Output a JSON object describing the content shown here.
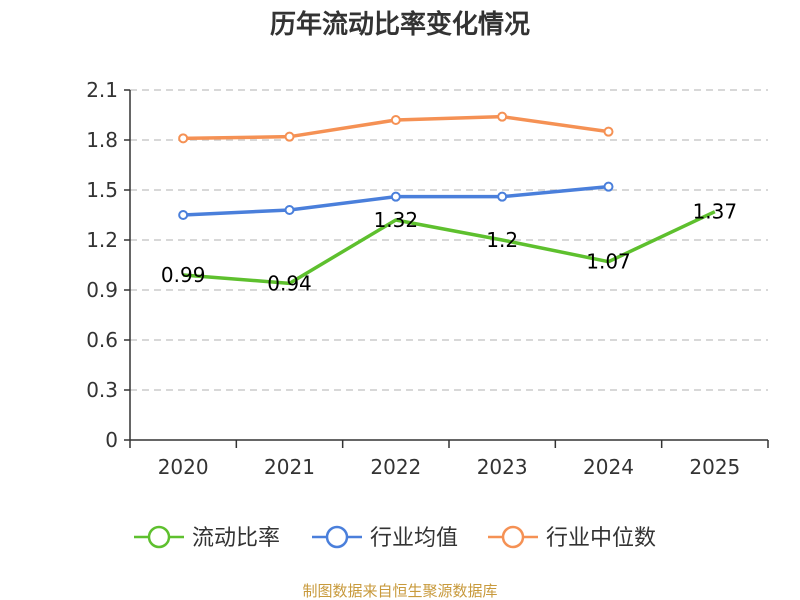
{
  "chart_data": {
    "type": "line",
    "title": "历年流动比率变化情况",
    "categories": [
      "2020",
      "2021",
      "2022",
      "2023",
      "2024",
      "2025"
    ],
    "ylim": [
      0,
      2.1
    ],
    "yticks": [
      "0",
      "0.3",
      "0.6",
      "0.9",
      "1.2",
      "1.5",
      "1.8",
      "2.1"
    ],
    "grid": true,
    "legend_position": "bottom",
    "series": [
      {
        "name": "流动比率",
        "color": "#5ec02e",
        "values": [
          0.99,
          0.94,
          1.32,
          1.2,
          1.07,
          1.37
        ],
        "labels": [
          "0.99",
          "0.94",
          "1.32",
          "1.2",
          "1.07",
          "1.37"
        ],
        "show_labels": true,
        "show_markers": false
      },
      {
        "name": "行业均值",
        "color": "#4a7fdb",
        "values": [
          1.35,
          1.38,
          1.46,
          1.46,
          1.52,
          null
        ],
        "show_labels": false,
        "show_markers": true
      },
      {
        "name": "行业中位数",
        "color": "#f59154",
        "values": [
          1.81,
          1.82,
          1.92,
          1.94,
          1.85,
          null
        ],
        "show_labels": false,
        "show_markers": true
      }
    ]
  },
  "source_text": "制图数据来自恒生聚源数据库"
}
